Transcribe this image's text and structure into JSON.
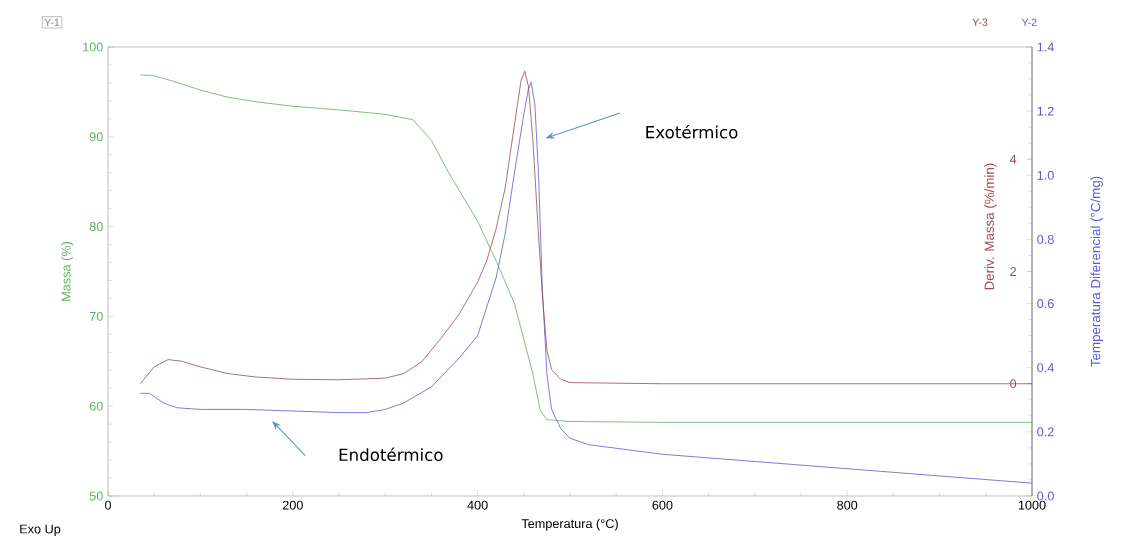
{
  "chart_data": {
    "type": "line",
    "xlabel": "Temperatura (°C)",
    "ylabel": "Massa (%)",
    "y2label": "Temperatura Diferencial (°C/mg)",
    "y3label": "Deriv. Massa (%/min)",
    "xlim": [
      0,
      1000
    ],
    "xticks": [
      0,
      200,
      400,
      600,
      800,
      1000
    ],
    "ylim": [
      50,
      100
    ],
    "yticks": [
      50,
      60,
      70,
      80,
      90,
      100
    ],
    "y2lim": [
      0,
      1.4
    ],
    "y2ticks": [
      {
        "value": 0,
        "label": "0.0"
      },
      {
        "value": 0.2,
        "label": "0.2"
      },
      {
        "value": 0.4,
        "label": "0.4"
      },
      {
        "value": 0.6,
        "label": "0.6"
      },
      {
        "value": 0.8,
        "label": "0.8"
      },
      {
        "value": 1.0,
        "label": "1.0"
      },
      {
        "value": 1.2,
        "label": "1.2"
      },
      {
        "value": 1.4,
        "label": "1.4"
      }
    ],
    "y3lim": [
      -2,
      6
    ],
    "y3ticks": [
      0,
      2,
      4
    ],
    "marker": "none",
    "line_style": "solid",
    "series": [
      {
        "color": "#5fae62",
        "axis": "y",
        "x": [
          35,
          50,
          70,
          100,
          130,
          160,
          200,
          250,
          300,
          330,
          350,
          366,
          382,
          400,
          420,
          440,
          460,
          468,
          475,
          500,
          600,
          800,
          1000
        ],
        "values": [
          96.9,
          96.8,
          96.2,
          95.2,
          94.4,
          93.9,
          93.4,
          93.0,
          92.5,
          91.9,
          89.6,
          86.5,
          83.7,
          80.6,
          76.2,
          71.4,
          63.5,
          59.5,
          58.5,
          58.3,
          58.2,
          58.2,
          58.2
        ]
      },
      {
        "color": "#9a4a50",
        "axis": "y3",
        "x": [
          35,
          50,
          65,
          80,
          100,
          130,
          160,
          200,
          250,
          300,
          320,
          340,
          360,
          380,
          400,
          410,
          420,
          430,
          440,
          447,
          451,
          455,
          460,
          465,
          470,
          475,
          480,
          490,
          500,
          600,
          800,
          1000
        ],
        "values": [
          0.0,
          0.3,
          0.43,
          0.4,
          0.3,
          0.18,
          0.12,
          0.08,
          0.07,
          0.1,
          0.18,
          0.4,
          0.8,
          1.24,
          1.81,
          2.2,
          2.76,
          3.5,
          4.63,
          5.4,
          5.57,
          5.3,
          4.3,
          2.9,
          1.6,
          0.6,
          0.25,
          0.08,
          0.02,
          0,
          0,
          0
        ]
      },
      {
        "color": "#5a5ad2",
        "axis": "y2",
        "x": [
          35,
          45,
          60,
          75,
          100,
          150,
          200,
          250,
          280,
          300,
          320,
          350,
          380,
          400,
          420,
          430,
          440,
          450,
          455,
          458,
          462,
          466,
          470,
          475,
          480,
          490,
          500,
          520,
          600,
          800,
          1000
        ],
        "values": [
          0.32,
          0.32,
          0.29,
          0.275,
          0.27,
          0.27,
          0.265,
          0.26,
          0.26,
          0.27,
          0.29,
          0.34,
          0.43,
          0.5,
          0.68,
          0.82,
          1.01,
          1.19,
          1.27,
          1.29,
          1.22,
          1.0,
          0.65,
          0.38,
          0.27,
          0.21,
          0.18,
          0.16,
          0.13,
          0.085,
          0.04
        ]
      }
    ],
    "annotations": [
      "Y-1",
      "Y-3",
      "Y-2",
      "Exo Up",
      "Exotérmico",
      "Endotérmico"
    ]
  }
}
